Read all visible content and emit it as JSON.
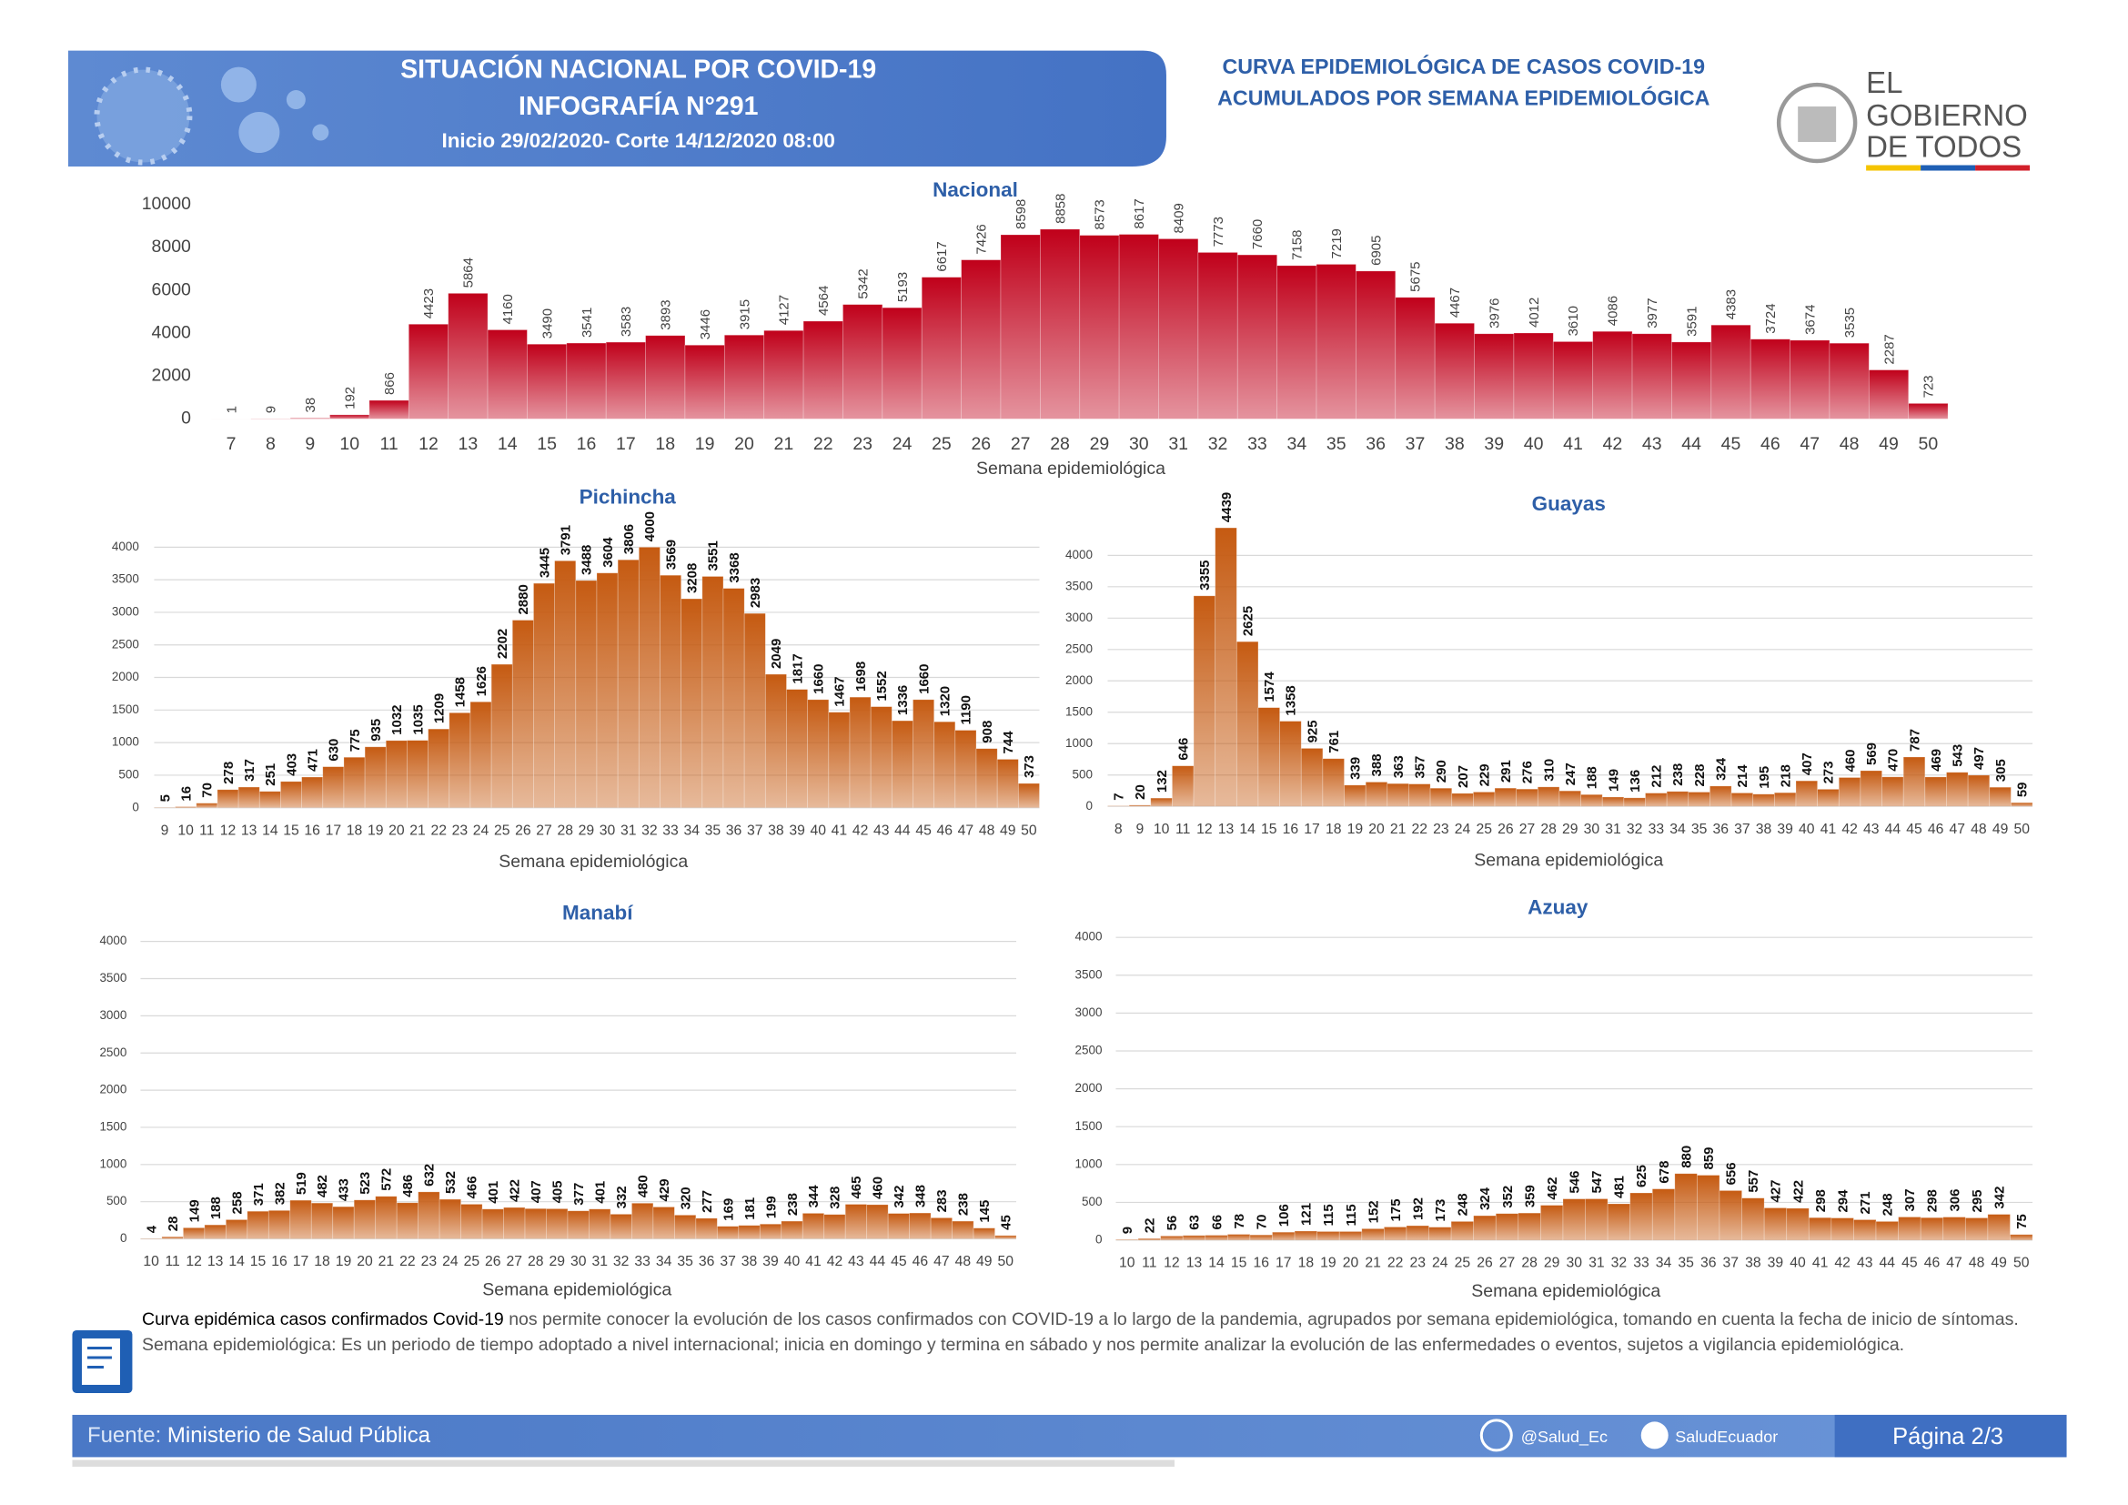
{
  "header": {
    "title": "SITUACIÓN NACIONAL POR  COVID-19",
    "subtitle": "INFOGRAFÍA N°291",
    "period": "Inicio 29/02/2020- Corte 14/12/2020 08:00",
    "right_title": [
      "CURVA EPIDEMIOLÓGICA DE CASOS COVID-19",
      "ACUMULADOS POR SEMANA EPIDEMIOLÓGICA"
    ],
    "logo": [
      "EL",
      "GOBIERNO",
      "DE TODOS"
    ]
  },
  "chart_data": [
    {
      "type": "bar",
      "title": "Nacional",
      "x_label": "Semana epidemiológica",
      "color": "#c0001a",
      "grid": false,
      "categories": [
        7,
        8,
        9,
        10,
        11,
        12,
        13,
        14,
        15,
        16,
        17,
        18,
        19,
        20,
        21,
        22,
        23,
        24,
        25,
        26,
        27,
        28,
        29,
        30,
        31,
        32,
        33,
        34,
        35,
        36,
        37,
        38,
        39,
        40,
        41,
        42,
        43,
        44,
        45,
        46,
        47,
        48,
        49,
        50
      ],
      "values": [
        1,
        9,
        38,
        192,
        866,
        4423,
        5864,
        4160,
        3490,
        3541,
        3583,
        3893,
        3446,
        3915,
        4127,
        4564,
        5342,
        5193,
        6617,
        7426,
        8598,
        8858,
        8573,
        8617,
        8409,
        7773,
        7660,
        7158,
        7219,
        6905,
        5675,
        4467,
        3976,
        4012,
        3610,
        4086,
        3977,
        3591,
        4383,
        3724,
        3674,
        3535,
        2287,
        723
      ],
      "ylim": [
        0,
        10000
      ],
      "yticks": [
        0,
        2000,
        4000,
        6000,
        8000,
        10000
      ]
    },
    {
      "type": "bar",
      "title": "Pichincha",
      "x_label": "Semana epidemiológica",
      "color": "#c55a11",
      "grid": true,
      "categories": [
        9,
        10,
        11,
        12,
        13,
        14,
        15,
        16,
        17,
        18,
        19,
        20,
        21,
        22,
        23,
        24,
        25,
        26,
        27,
        28,
        29,
        30,
        31,
        32,
        33,
        34,
        35,
        36,
        37,
        38,
        39,
        40,
        41,
        42,
        43,
        44,
        45,
        46,
        47,
        48,
        49,
        50
      ],
      "values": [
        5,
        16,
        70,
        278,
        317,
        251,
        403,
        471,
        630,
        775,
        935,
        1032,
        1035,
        1209,
        1458,
        1626,
        2202,
        2880,
        3445,
        3791,
        3488,
        3604,
        3806,
        4000,
        3569,
        3208,
        3551,
        3368,
        2983,
        2049,
        1817,
        1660,
        1467,
        1698,
        1552,
        1336,
        1660,
        1320,
        1190,
        908,
        744,
        373
      ],
      "ylim": [
        0,
        4000
      ],
      "yticks": [
        0,
        500,
        1000,
        1500,
        2000,
        2500,
        3000,
        3500,
        4000
      ]
    },
    {
      "type": "bar",
      "title": "Guayas",
      "x_label": "Semana epidemiológica",
      "color": "#c55a11",
      "grid": true,
      "categories": [
        8,
        9,
        10,
        11,
        12,
        13,
        14,
        15,
        16,
        17,
        18,
        19,
        20,
        21,
        22,
        23,
        24,
        25,
        26,
        27,
        28,
        29,
        30,
        31,
        32,
        33,
        34,
        35,
        36,
        37,
        38,
        39,
        40,
        41,
        42,
        43,
        44,
        45,
        46,
        47,
        48,
        49,
        50
      ],
      "values": [
        7,
        20,
        132,
        646,
        3355,
        4439,
        2625,
        1574,
        1358,
        925,
        761,
        339,
        388,
        363,
        357,
        290,
        207,
        229,
        291,
        276,
        310,
        247,
        188,
        149,
        136,
        212,
        238,
        228,
        324,
        214,
        195,
        218,
        407,
        273,
        460,
        569,
        470,
        787,
        469,
        543,
        497,
        305,
        59
      ],
      "ylim": [
        0,
        4500
      ],
      "yticks": [
        0,
        500,
        1000,
        1500,
        2000,
        2500,
        3000,
        3500,
        4000
      ]
    },
    {
      "type": "bar",
      "title": "Manabí",
      "x_label": "Semana epidemiológica",
      "color": "#c55a11",
      "grid": true,
      "categories": [
        10,
        11,
        12,
        13,
        14,
        15,
        16,
        17,
        18,
        19,
        20,
        21,
        22,
        23,
        24,
        25,
        26,
        27,
        28,
        29,
        30,
        31,
        32,
        33,
        34,
        35,
        36,
        37,
        38,
        39,
        40,
        41,
        42,
        43,
        44,
        45,
        46,
        47,
        48,
        49,
        50
      ],
      "values": [
        4,
        28,
        149,
        188,
        258,
        371,
        382,
        519,
        482,
        433,
        523,
        572,
        486,
        632,
        532,
        466,
        401,
        422,
        407,
        405,
        377,
        401,
        332,
        480,
        429,
        320,
        277,
        169,
        181,
        199,
        238,
        344,
        328,
        465,
        460,
        342,
        348,
        283,
        238,
        145,
        45
      ],
      "ylim": [
        0,
        4000
      ],
      "yticks": [
        0,
        500,
        1000,
        1500,
        2000,
        2500,
        3000,
        3500,
        4000
      ]
    },
    {
      "type": "bar",
      "title": "Azuay",
      "x_label": "Semana epidemiológica",
      "color": "#c55a11",
      "grid": true,
      "categories": [
        10,
        11,
        12,
        13,
        14,
        15,
        16,
        17,
        18,
        19,
        20,
        21,
        22,
        23,
        24,
        25,
        26,
        27,
        28,
        29,
        30,
        31,
        32,
        33,
        34,
        35,
        36,
        37,
        38,
        39,
        40,
        41,
        42,
        43,
        44,
        45,
        46,
        47,
        48,
        49,
        50
      ],
      "values": [
        9,
        22,
        56,
        63,
        66,
        78,
        70,
        106,
        121,
        115,
        115,
        152,
        175,
        192,
        173,
        248,
        324,
        352,
        359,
        462,
        546,
        547,
        481,
        625,
        678,
        880,
        859,
        656,
        557,
        427,
        422,
        298,
        294,
        271,
        248,
        307,
        298,
        306,
        295,
        342,
        75
      ],
      "ylim": [
        0,
        4000
      ],
      "yticks": [
        0,
        500,
        1000,
        1500,
        2000,
        2500,
        3000,
        3500,
        4000
      ]
    }
  ],
  "notes": {
    "term": "Curva epidémica casos confirmados Covid-19",
    "text": "nos permite conocer la evolución de los casos confirmados con COVID-19 a lo largo de la pandemia, agrupados por semana epidemiológica, tomando en cuenta la fecha de inicio de síntomas.",
    "definition": "Semana epidemiológica: Es un periodo de tiempo adoptado a nivel internacional; inicia en domingo y termina en sábado y nos permite analizar la evolución de las enfermedades o eventos, sujetos a vigilancia epidemiológica."
  },
  "footer": {
    "source_label": "Fuente:",
    "source": "Ministerio de Salud Pública",
    "twitter": "@Salud_Ec",
    "facebook": "SaludEcuador",
    "page": "Página 2/3"
  }
}
